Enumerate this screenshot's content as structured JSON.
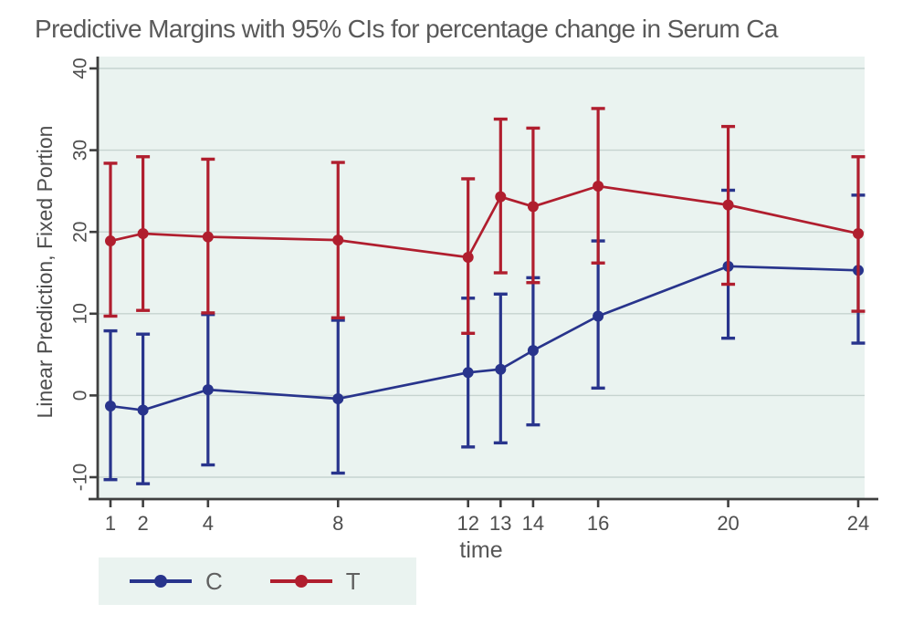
{
  "chart_data": {
    "type": "line",
    "title": "Predictive Margins with 95% CIs for percentage change in Serum Ca",
    "xlabel": "time",
    "ylabel": "Linear Prediction, Fixed Portion",
    "x_ticks": [
      1,
      2,
      4,
      8,
      12,
      13,
      14,
      16,
      20,
      24
    ],
    "y_ticks": [
      40,
      30,
      20,
      10,
      0,
      -10
    ],
    "xlim": [
      0.6,
      24.2
    ],
    "ylim": [
      -12.8,
      41.5
    ],
    "grid": true,
    "error_bars": "95% CI",
    "legend_position": "bottom-left",
    "colors": {
      "plot_bg": "#eaf3f0",
      "grid": "#c6d3cf",
      "axis": "#3f3f3f",
      "text": "#565656"
    },
    "series": [
      {
        "name": "C",
        "color": "#28348c",
        "x": [
          1,
          2,
          4,
          8,
          12,
          13,
          14,
          16,
          20,
          24
        ],
        "y": [
          -1.3,
          -1.8,
          0.7,
          -0.4,
          2.8,
          3.2,
          5.5,
          9.7,
          15.8,
          15.3
        ],
        "ci_low": [
          -10.3,
          -10.8,
          -8.5,
          -9.5,
          -6.3,
          -5.8,
          -3.6,
          0.9,
          7.0,
          6.4
        ],
        "ci_high": [
          7.9,
          7.5,
          9.9,
          9.2,
          11.9,
          12.4,
          14.4,
          18.9,
          25.1,
          24.5
        ]
      },
      {
        "name": "T",
        "color": "#b01e2e",
        "x": [
          1,
          2,
          4,
          8,
          12,
          13,
          14,
          16,
          20,
          24
        ],
        "y": [
          18.9,
          19.8,
          19.4,
          19.0,
          16.9,
          24.3,
          23.1,
          25.6,
          23.3,
          19.8
        ],
        "ci_low": [
          9.7,
          10.4,
          10.1,
          9.5,
          7.6,
          15.0,
          13.8,
          16.2,
          13.6,
          10.3
        ],
        "ci_high": [
          28.4,
          29.2,
          28.9,
          28.5,
          26.5,
          33.8,
          32.7,
          35.1,
          32.9,
          29.2
        ]
      }
    ]
  }
}
